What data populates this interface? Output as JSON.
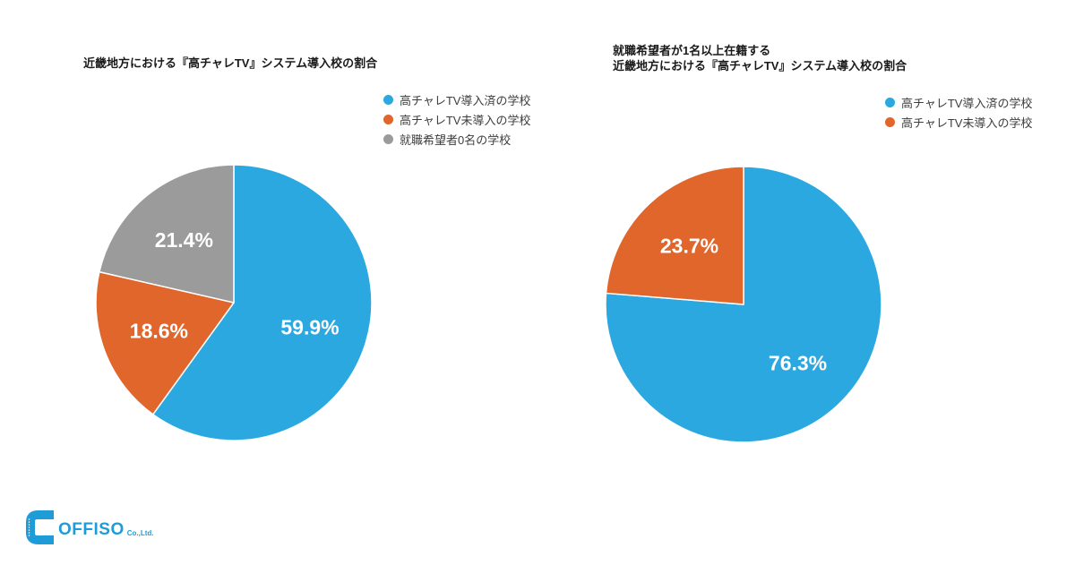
{
  "page": {
    "background": "#ffffff"
  },
  "chart_data": [
    {
      "type": "pie",
      "title": "近畿地方における『高チャレTV』システム導入校の割合",
      "labels": [
        "高チャレTV導入済の学校",
        "高チャレTV未導入の学校",
        "就職希望者0名の学校"
      ],
      "values": [
        59.9,
        18.6,
        21.4
      ],
      "value_labels": [
        "59.9%",
        "18.6%",
        "21.4%"
      ],
      "colors": [
        "#2ca8e0",
        "#e0662c",
        "#9b9b9b"
      ],
      "start_angle": "top",
      "direction": "clockwise",
      "legend_position": "top-right",
      "slice_label_color": "#ffffff",
      "slice_border_color": "#ffffff"
    },
    {
      "type": "pie",
      "title": "就職希望者が1名以上在籍する\n近畿地方における『高チャレTV』システム導入校の割合",
      "labels": [
        "高チャレTV導入済の学校",
        "高チャレTV未導入の学校"
      ],
      "values": [
        76.3,
        23.7
      ],
      "value_labels": [
        "76.3%",
        "23.7%"
      ],
      "colors": [
        "#2ca8e0",
        "#e0662c"
      ],
      "start_angle": "top",
      "direction": "clockwise",
      "legend_position": "top-right",
      "slice_label_color": "#ffffff",
      "slice_border_color": "#ffffff"
    }
  ],
  "footer": {
    "logo_text": "OFFISO",
    "logo_suffix": "Co.,Ltd.",
    "logo_color": "#1e9cd8"
  }
}
